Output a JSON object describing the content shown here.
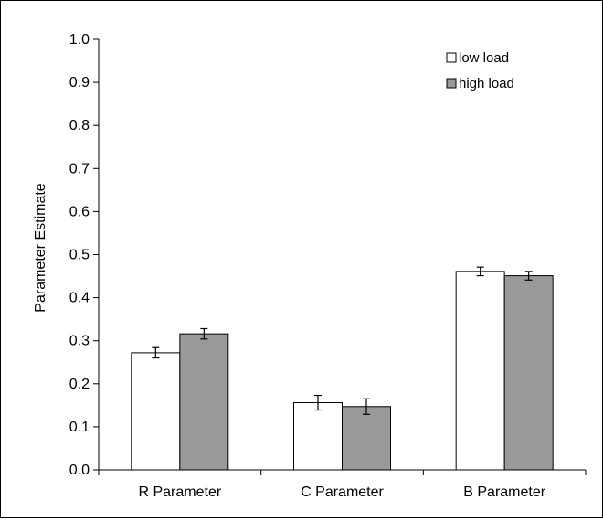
{
  "chart_data": {
    "type": "bar",
    "ylabel": "Parameter Estimate",
    "xlabel": "",
    "ylim": [
      0,
      1.0
    ],
    "yticks": [
      "0.0",
      "0.1",
      "0.2",
      "0.3",
      "0.4",
      "0.5",
      "0.6",
      "0.7",
      "0.8",
      "0.9",
      "1.0"
    ],
    "categories": [
      "R Parameter",
      "C Parameter",
      "B Parameter"
    ],
    "series": [
      {
        "name": "low load",
        "color": "#ffffff",
        "values": [
          0.272,
          0.156,
          0.461
        ],
        "errors": [
          0.012,
          0.017,
          0.01
        ]
      },
      {
        "name": "high load",
        "color": "#999999",
        "values": [
          0.316,
          0.147,
          0.451
        ],
        "errors": [
          0.012,
          0.018,
          0.01
        ]
      }
    ],
    "legend": {
      "position": "top-right"
    },
    "grid": false
  }
}
